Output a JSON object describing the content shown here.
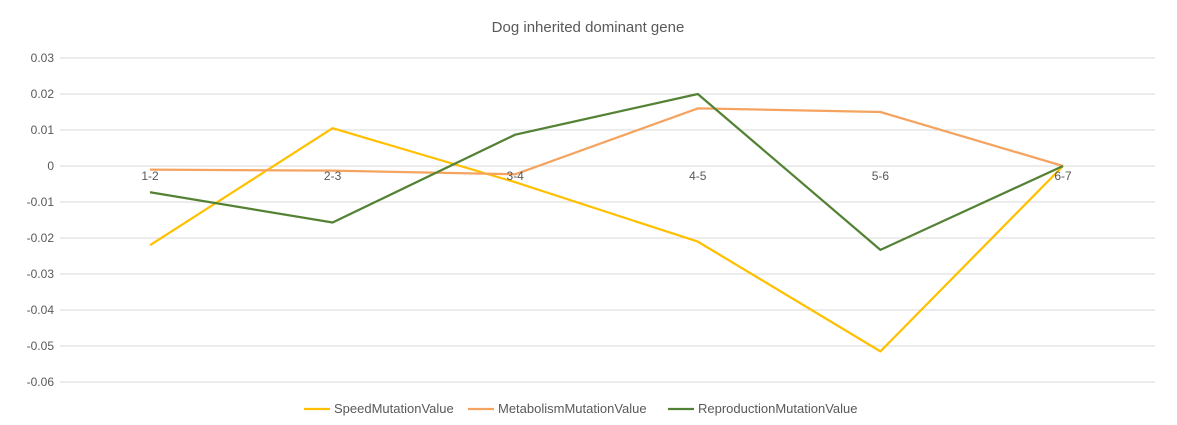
{
  "chart_data": {
    "type": "line",
    "title": "Dog inherited dominant gene",
    "categories": [
      "1-2",
      "2-3",
      "3-4",
      "4-5",
      "5-6",
      "6-7"
    ],
    "ylim": [
      -0.06,
      0.03
    ],
    "yticks": [
      0.03,
      0.02,
      0.01,
      0,
      -0.01,
      -0.02,
      -0.03,
      -0.04,
      -0.05,
      -0.06
    ],
    "ytick_labels": [
      "0.03",
      "0.02",
      "0.01",
      "0",
      "-0.01",
      "-0.02",
      "-0.03",
      "-0.04",
      "-0.05",
      "-0.06"
    ],
    "grid": true,
    "legend_position": "bottom",
    "series": [
      {
        "name": "SpeedMutationValue",
        "color": "#FFC000",
        "values": [
          -0.022,
          0.0105,
          -0.0045,
          -0.021,
          -0.0515,
          0.0
        ]
      },
      {
        "name": "MetabolismMutationValue",
        "color": "#F4A460",
        "values": [
          -0.001,
          -0.0013,
          -0.0023,
          0.016,
          0.015,
          0.0
        ]
      },
      {
        "name": "ReproductionMutationValue",
        "color": "#548235",
        "values": [
          -0.0073,
          -0.0157,
          0.0087,
          0.02,
          -0.0233,
          0.0
        ]
      }
    ]
  }
}
